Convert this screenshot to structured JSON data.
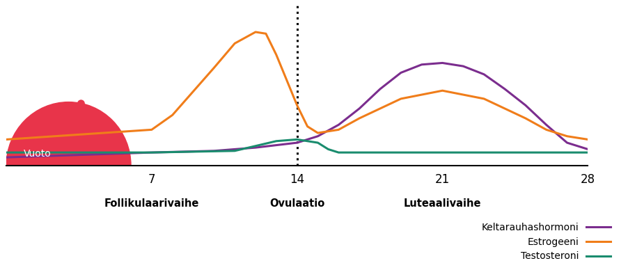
{
  "chart_data": {
    "type": "line",
    "xlim": [
      0,
      28
    ],
    "xticks": [
      7,
      14,
      21,
      28
    ],
    "ylim": [
      0,
      100
    ],
    "yticks": [],
    "tick_labels": "x",
    "legend": "lower right",
    "series": [
      {
        "name": "Keltarauhashormoni",
        "color": "#7b2d8e",
        "line_style": "solid",
        "x": [
          0,
          7,
          10,
          12,
          14,
          15,
          16,
          17,
          18,
          19,
          20,
          21,
          22,
          23,
          24,
          25,
          26,
          27,
          28
        ],
        "values": [
          5,
          8,
          9,
          11,
          14,
          18,
          25,
          35,
          47,
          57,
          62,
          63,
          61,
          56,
          47,
          37,
          25,
          14,
          10
        ]
      },
      {
        "name": "Estrogeeni",
        "color": "#f07d1a",
        "line_style": "solid",
        "x": [
          0,
          7,
          8,
          10,
          11,
          12,
          12.5,
          13,
          14,
          14.5,
          15,
          16,
          17,
          19,
          21,
          23,
          25,
          26,
          27,
          28
        ],
        "values": [
          16,
          22,
          31,
          60,
          75,
          82,
          81,
          68,
          37,
          24,
          20,
          22,
          29,
          41,
          46,
          41,
          29,
          22,
          18,
          16
        ]
      },
      {
        "name": "Testosteroni",
        "color": "#1a8c6e",
        "line_style": "solid",
        "x": [
          0,
          7,
          11,
          12,
          13,
          14,
          15,
          15.5,
          16,
          21,
          28
        ],
        "values": [
          8,
          8,
          9,
          12,
          15,
          16,
          14,
          10,
          8,
          8,
          8
        ]
      }
    ],
    "bleeding": {
      "label": "Vuoto",
      "start": 0,
      "end": 6,
      "color": "#e8344a"
    },
    "ovulation_line": {
      "x": 14,
      "line_style": "dotted"
    },
    "annotations": [
      {
        "text": "Follikulaarivaihe",
        "x": 7
      },
      {
        "text": "Ovulaatio",
        "x": 14
      },
      {
        "text": "Luteaalivaihe",
        "x": 21
      }
    ]
  }
}
